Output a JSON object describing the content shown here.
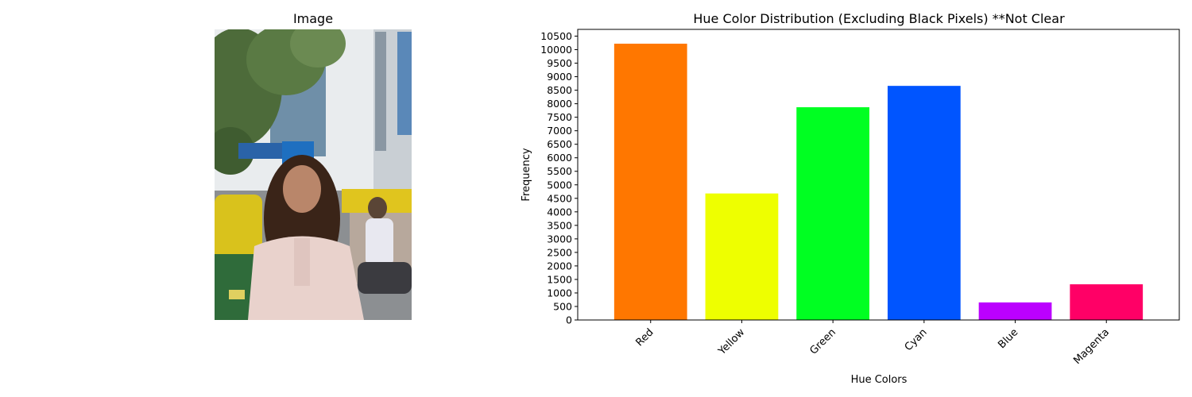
{
  "image_panel": {
    "title": "Image",
    "photo_description_icon": "photo-of-woman-on-street"
  },
  "chart_data": {
    "type": "bar",
    "title": "Hue Color Distribution (Excluding Black Pixels) **Not Clear",
    "xlabel": "Hue Colors",
    "ylabel": "Frequency",
    "categories": [
      "Red",
      "Yellow",
      "Green",
      "Cyan",
      "Blue",
      "Magenta"
    ],
    "values": [
      10220,
      4680,
      7870,
      8660,
      650,
      1320
    ],
    "colors": [
      "#ff7700",
      "#eeff00",
      "#00ff22",
      "#0055ff",
      "#bb00ff",
      "#ff0066"
    ],
    "ylim": [
      0,
      10750
    ],
    "yticks": [
      0,
      500,
      1000,
      1500,
      2000,
      2500,
      3000,
      3500,
      4000,
      4500,
      5000,
      5500,
      6000,
      6500,
      7000,
      7500,
      8000,
      8500,
      9000,
      9500,
      10000,
      10500
    ],
    "xtick_rotation": 45,
    "grid": false,
    "legend": "none"
  }
}
